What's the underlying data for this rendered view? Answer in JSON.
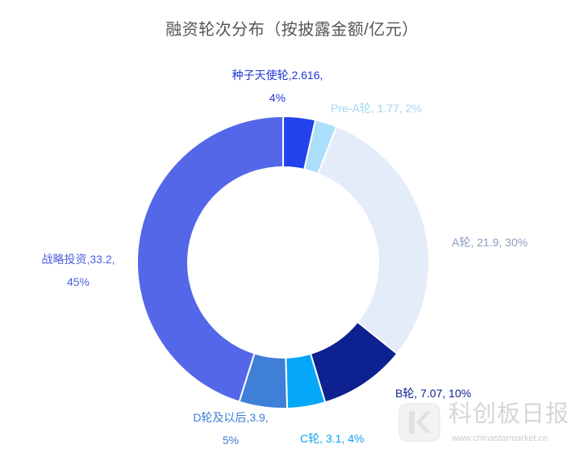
{
  "chart_data": {
    "type": "pie",
    "variant": "donut",
    "title": "融资轮次分布（按披露金额/亿元）",
    "unit": "亿元",
    "start": "top",
    "direction": "clockwise",
    "legend": "none",
    "slices": [
      {
        "name": "种子天使轮",
        "value": 2.616,
        "pct_label": "4%",
        "sep": ",",
        "color": "#2342ec",
        "label_color": "#1d38d9"
      },
      {
        "name": "Pre-A轮",
        "value": 1.77,
        "pct_label": "2%",
        "sep": ", ",
        "color": "#abdefa",
        "label_color": "#a2d5f4"
      },
      {
        "name": "A轮",
        "value": 21.9,
        "pct_label": "30%",
        "sep": ", ",
        "color": "#e3ecf8",
        "label_color": "#8b9fbf"
      },
      {
        "name": "B轮",
        "value": 7.07,
        "pct_label": "10%",
        "sep": ", ",
        "color": "#0e2190",
        "label_color": "#0e2190"
      },
      {
        "name": "C轮",
        "value": 3.1,
        "pct_label": "4%",
        "sep": ", ",
        "color": "#05a7f8",
        "label_color": "#0aa3f0"
      },
      {
        "name": "D轮及以后",
        "value": 3.9,
        "pct_label": "5%",
        "sep": ",",
        "color": "#3f7fd8",
        "label_color": "#3d7dd6"
      },
      {
        "name": "战略投资",
        "value": 33.2,
        "pct_label": "45%",
        "sep": ",",
        "color": "#5467e9",
        "label_color": "#4b5fdf"
      }
    ]
  },
  "watermark": {
    "brand": "科创板日报",
    "url": "www.chinastarmarket.cn"
  }
}
